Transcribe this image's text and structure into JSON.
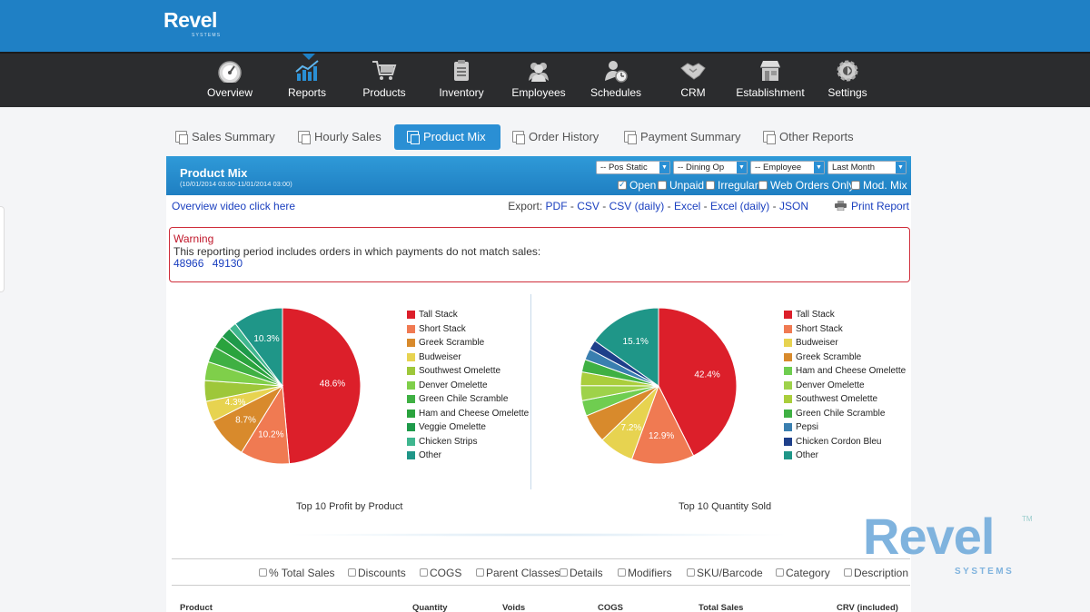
{
  "brand": {
    "name": "Revel",
    "sub": "SYSTEMS"
  },
  "nav": [
    {
      "label": "Overview",
      "icon": "speedometer-icon"
    },
    {
      "label": "Reports",
      "icon": "chart-icon"
    },
    {
      "label": "Products",
      "icon": "cart-icon"
    },
    {
      "label": "Inventory",
      "icon": "clipboard-icon"
    },
    {
      "label": "Employees",
      "icon": "people-icon"
    },
    {
      "label": "Schedules",
      "icon": "clock-person-icon"
    },
    {
      "label": "CRM",
      "icon": "handshake-icon"
    },
    {
      "label": "Establishment",
      "icon": "store-icon"
    },
    {
      "label": "Settings",
      "icon": "gear-icon"
    }
  ],
  "tabs": [
    {
      "label": "Sales Summary"
    },
    {
      "label": "Hourly Sales"
    },
    {
      "label": "Product Mix"
    },
    {
      "label": "Order History"
    },
    {
      "label": "Payment Summary"
    },
    {
      "label": "Other Reports"
    }
  ],
  "panel": {
    "title": "Product Mix",
    "period": "(10/01/2014 03:00-11/01/2014 03:00)",
    "selects": [
      "-- Pos Static",
      "-- Dining Op",
      "-- Employee",
      "Last Month"
    ],
    "filters": [
      {
        "label": "Open",
        "checked": true
      },
      {
        "label": "Unpaid",
        "checked": false
      },
      {
        "label": "Irregular",
        "checked": false
      },
      {
        "label": "Web Orders Only",
        "checked": false
      },
      {
        "label": "Mod. Mix",
        "checked": false
      }
    ],
    "overview_link": "Overview video click here",
    "export_label": "Export:",
    "export_links": [
      "PDF",
      "CSV",
      "CSV (daily)",
      "Excel",
      "Excel (daily)",
      "JSON"
    ],
    "print_label": "Print Report",
    "warning": {
      "title": "Warning",
      "text": "This reporting period includes orders in which payments do not match sales:",
      "orders": [
        "48966",
        "49130"
      ]
    },
    "options": [
      "% Total Sales",
      "Discounts",
      "COGS",
      "Parent Classes",
      "Details",
      "Modifiers",
      "SKU/Barcode",
      "Category",
      "Description"
    ],
    "table_headers": [
      "Product",
      "Quantity",
      "Voids",
      "COGS",
      "Total Sales",
      "CRV (included)"
    ]
  },
  "chart_data": [
    {
      "type": "pie",
      "title": "Top 10 Profit by Product",
      "labels": [
        "Tall Stack",
        "Short Stack",
        "Greek Scramble",
        "Budweiser",
        "Southwest Omelette",
        "Denver Omelette",
        "Green Chile Scramble",
        "Ham and Cheese Omelette",
        "Veggie Omelette",
        "Chicken Strips",
        "Other"
      ],
      "values": [
        48.6,
        10.2,
        8.7,
        4.3,
        4.3,
        3.9,
        3.3,
        2.6,
        2.2,
        1.6,
        10.3
      ],
      "colors": [
        "#dc1f2a",
        "#f07a52",
        "#d88a2c",
        "#e7d350",
        "#9ec73a",
        "#7fcf4a",
        "#3fb043",
        "#2aa33d",
        "#1e9a4a",
        "#3fb68f",
        "#1f9688"
      ],
      "data_labels": [
        "48.6%",
        "10.2%",
        "8.7%",
        "4.3%",
        "",
        "",
        "",
        "",
        "",
        "",
        "10.3%"
      ]
    },
    {
      "type": "pie",
      "title": "Top 10 Quantity Sold",
      "labels": [
        "Tall Stack",
        "Short Stack",
        "Budweiser",
        "Greek Scramble",
        "Ham and Cheese Omelette",
        "Denver Omelette",
        "Southwest Omelette",
        "Green Chile Scramble",
        "Pepsi",
        "Chicken Cordon Bleu",
        "Other"
      ],
      "values": [
        42.4,
        12.9,
        7.2,
        5.9,
        3.2,
        3.1,
        2.8,
        2.6,
        2.3,
        2.0,
        15.1
      ],
      "colors": [
        "#dc1f2a",
        "#f07a52",
        "#e7d350",
        "#d88a2c",
        "#6fcd50",
        "#9ed24a",
        "#aace3c",
        "#3fb043",
        "#3a7fb0",
        "#1e3f8a",
        "#1f9688"
      ],
      "data_labels": [
        "42.4%",
        "12.9%",
        "7.2%",
        "",
        "",
        "",
        "",
        "",
        "",
        "",
        "15.1%"
      ]
    }
  ],
  "watermark": {
    "text": "Revel",
    "tm": "TM",
    "sub": "SYSTEMS"
  }
}
